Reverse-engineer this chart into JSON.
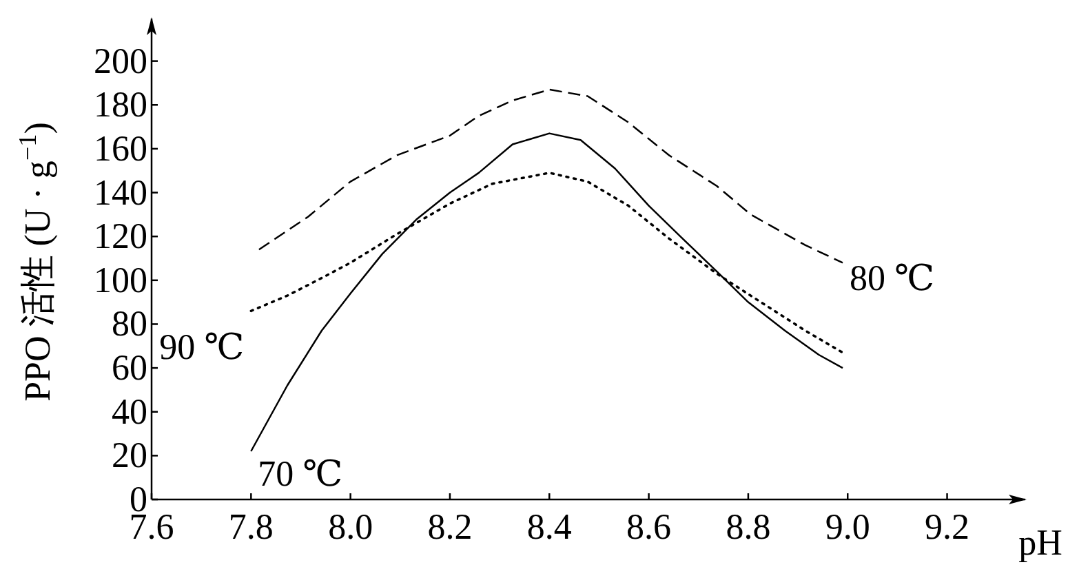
{
  "chart_data": {
    "type": "line",
    "xlabel": "pH",
    "ylabel": "PPO 活性 (U · g$^{−1}$)",
    "xlim": [
      7.6,
      9.36
    ],
    "xticks": [
      {
        "value": 7.6,
        "label": "7.6"
      },
      {
        "value": 7.8,
        "label": "7.8"
      },
      {
        "value": 8.0,
        "label": "8.0"
      },
      {
        "value": 8.2,
        "label": "8.2"
      },
      {
        "value": 8.4,
        "label": "8.4"
      },
      {
        "value": 8.6,
        "label": "8.6"
      },
      {
        "value": 8.8,
        "label": "8.8"
      },
      {
        "value": 9.0,
        "label": "9.0"
      },
      {
        "value": 9.2,
        "label": "9.2"
      }
    ],
    "ylim": [
      0,
      220
    ],
    "yticks": [
      0,
      20,
      40,
      60,
      80,
      100,
      120,
      140,
      160,
      180,
      200
    ],
    "grid": false,
    "marker": "none",
    "series": [
      {
        "name": "70 ℃",
        "color": "#000000",
        "line_style": "solid",
        "x": [
          7.8,
          7.873,
          7.942,
          8.0,
          8.064,
          8.134,
          8.2,
          8.258,
          8.326,
          8.4,
          8.463,
          8.532,
          8.6,
          8.668,
          8.737,
          8.8,
          8.874,
          8.942,
          8.99
        ],
        "values": [
          22,
          52,
          77,
          94,
          112,
          128,
          140,
          149,
          162,
          167,
          164,
          151,
          134,
          119,
          104,
          90,
          77,
          66,
          60
        ]
      },
      {
        "name": "80 ℃",
        "color": "#000000",
        "line_style": "dashed",
        "x": [
          7.816,
          7.915,
          8.0,
          8.093,
          8.2,
          8.258,
          8.326,
          8.4,
          8.477,
          8.559,
          8.641,
          8.737,
          8.805,
          8.915,
          8.99
        ],
        "values": [
          114,
          129,
          145,
          157,
          166,
          175,
          182,
          187,
          184,
          172,
          157,
          143,
          130,
          116,
          108
        ]
      },
      {
        "name": "90 ℃",
        "color": "#000000",
        "line_style": "dotted",
        "x": [
          7.8,
          7.873,
          7.942,
          8.0,
          8.093,
          8.2,
          8.285,
          8.4,
          8.477,
          8.559,
          8.641,
          8.737,
          8.805,
          8.915,
          8.99
        ],
        "values": [
          86,
          93,
          101,
          108,
          121,
          135,
          144,
          149,
          145,
          134,
          119,
          103,
          93,
          77,
          67
        ]
      }
    ]
  }
}
